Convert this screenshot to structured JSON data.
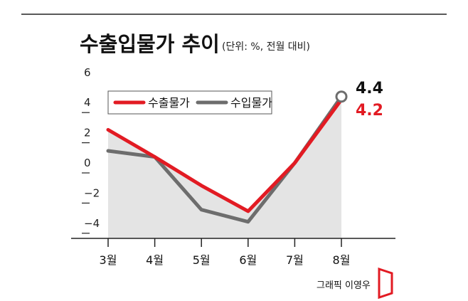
{
  "header": {
    "title": "수출입물가 추이",
    "unit_note": "(단위: %, 전월 대비)"
  },
  "colors": {
    "export": "#e21b23",
    "import": "#6d6d6d",
    "area": "#e4e4e4",
    "axis": "#222222"
  },
  "chart_data": {
    "type": "line",
    "categories": [
      "3월",
      "4월",
      "5월",
      "6월",
      "7월",
      "8월"
    ],
    "series": [
      {
        "name": "수출물가",
        "values": [
          2.2,
          0.4,
          -1.5,
          -3.2,
          0.0,
          4.2
        ]
      },
      {
        "name": "수입물가",
        "values": [
          0.8,
          0.4,
          -3.1,
          -3.9,
          0.0,
          4.4
        ]
      }
    ],
    "y_ticks": [
      "6",
      "4",
      "2",
      "0",
      "−2",
      "−4"
    ],
    "ylim": [
      -5,
      6
    ],
    "end_labels": {
      "import": "4.4",
      "export": "4.2"
    },
    "legend_placement": "top-left",
    "grid": false,
    "area_fill": "under export series"
  },
  "credit": "그래픽 이영우"
}
